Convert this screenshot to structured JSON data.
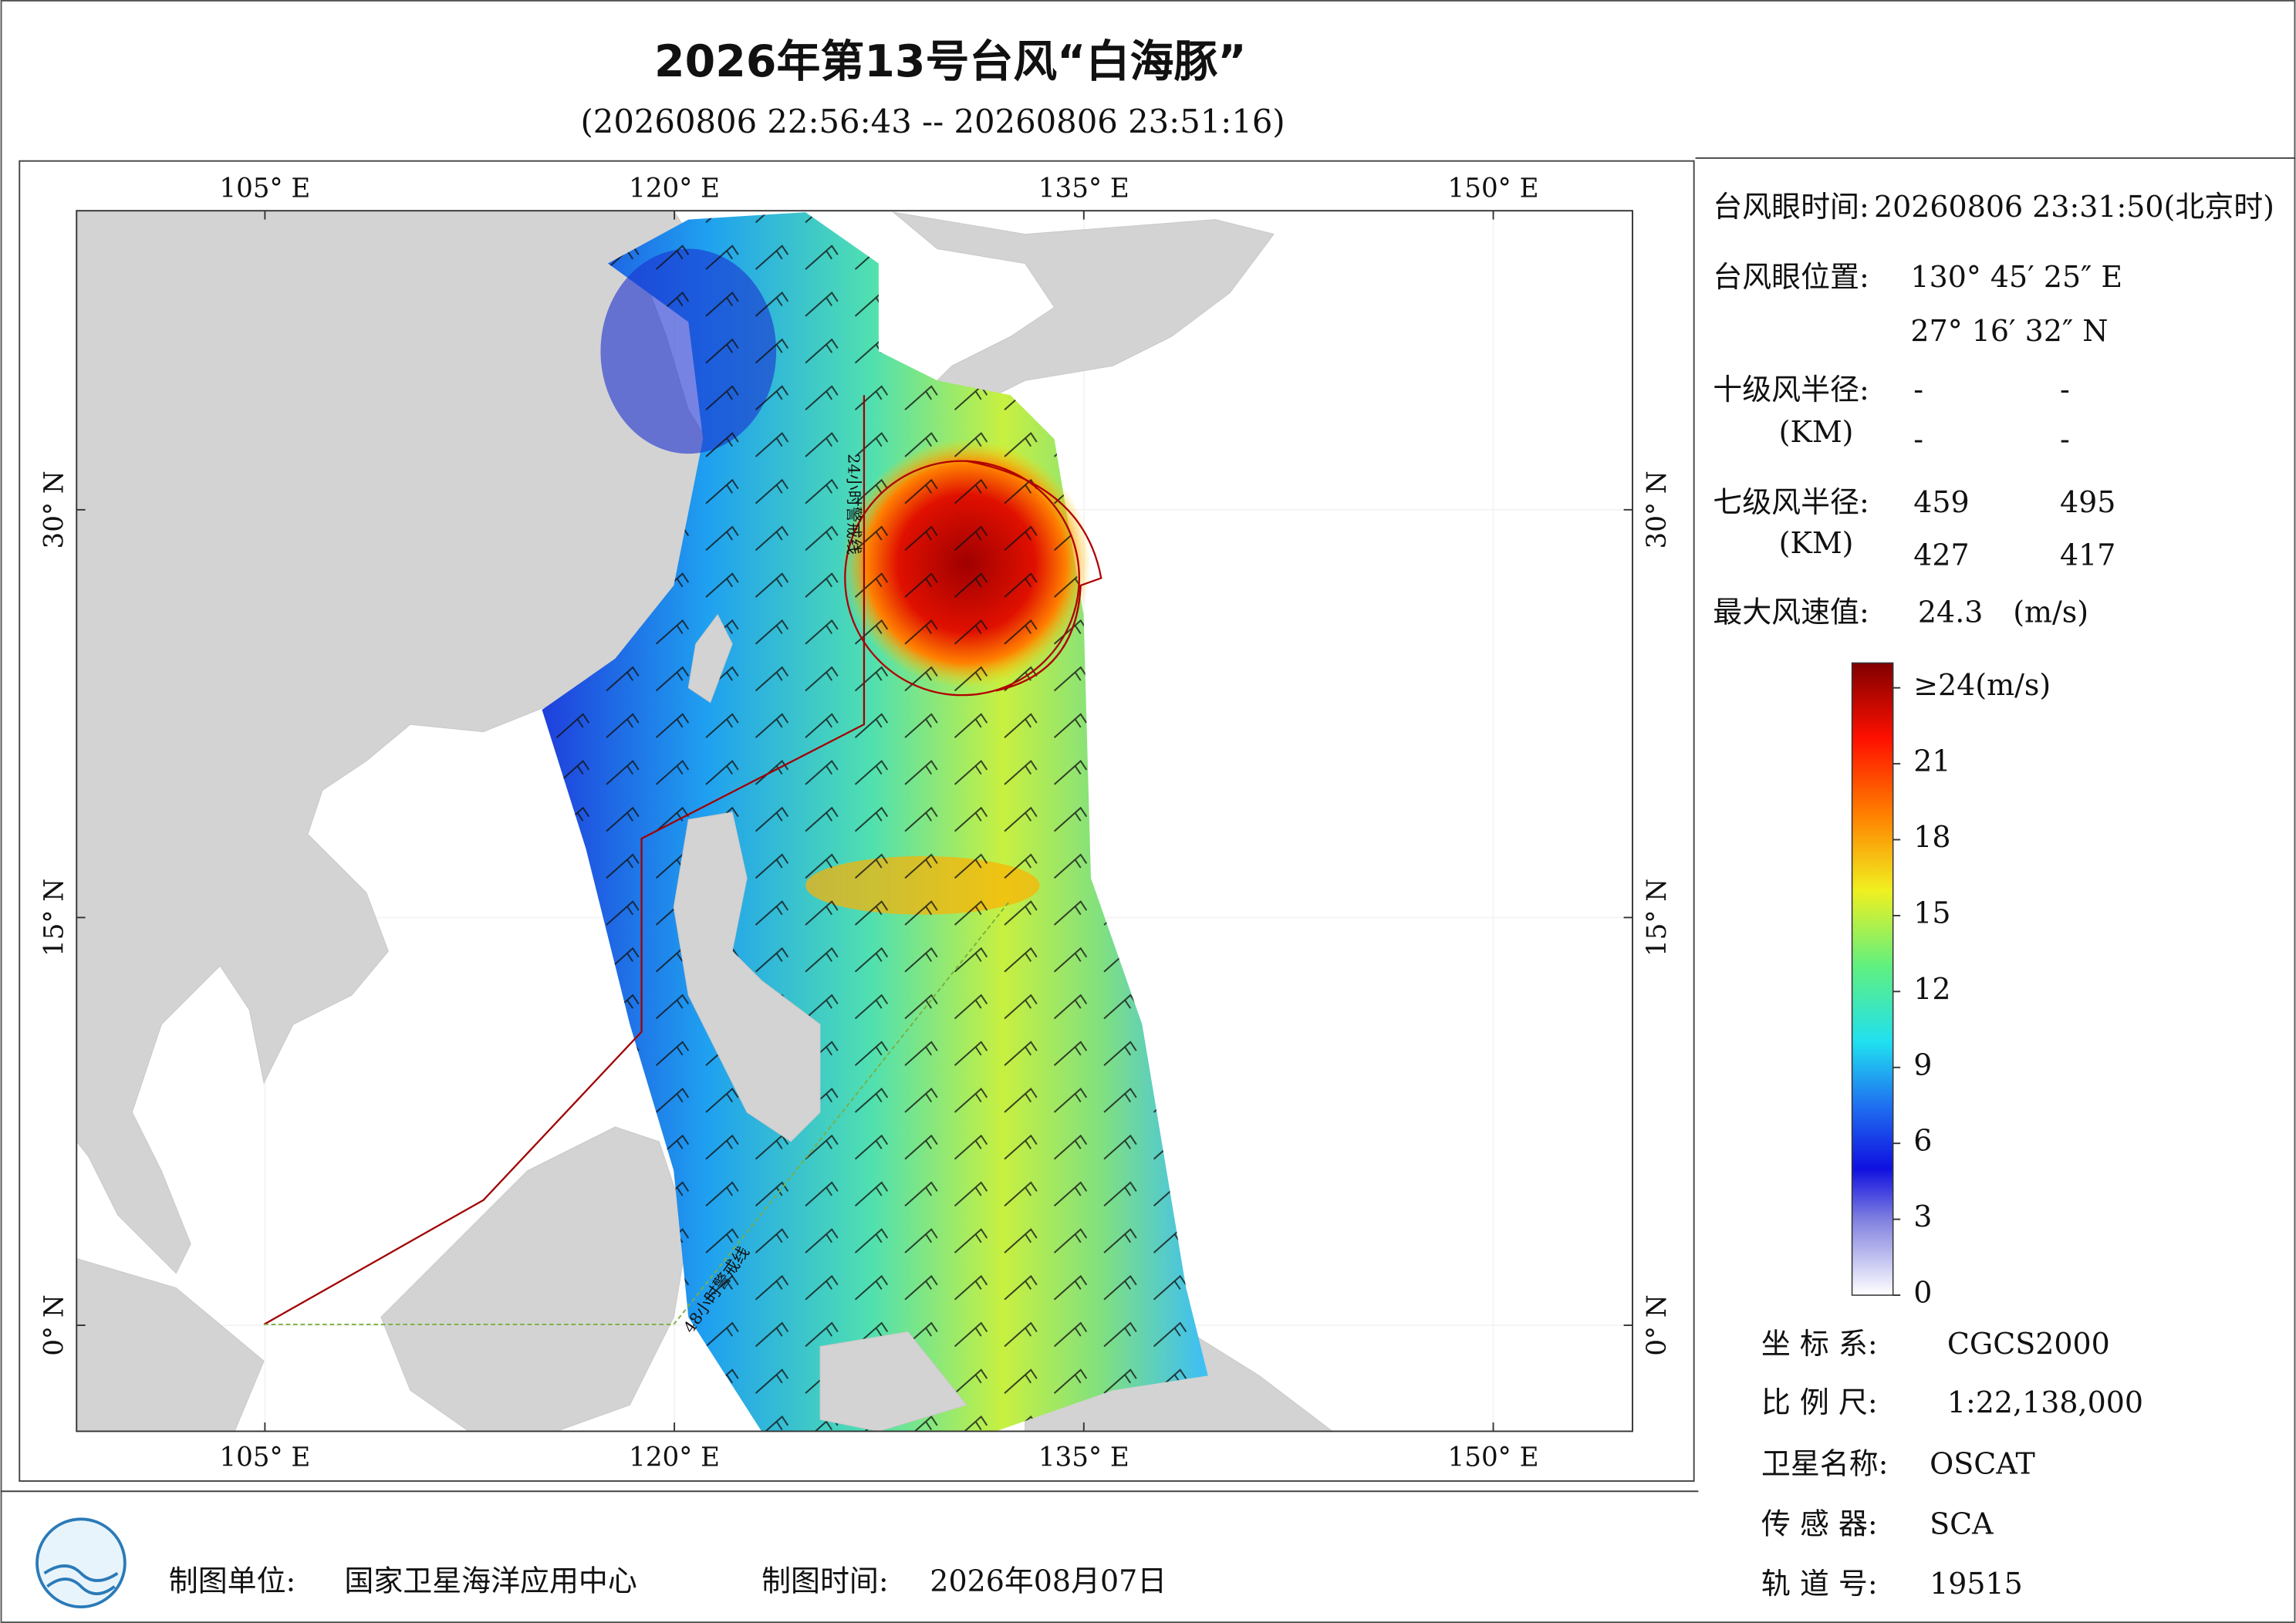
{
  "title": "2026年第13号台风“白海豚”",
  "subtitle": "(20260806 22:56:43 -- 20260806 23:51:16)",
  "map": {
    "lonlim": [
      98.1,
      155.1
    ],
    "latlim": [
      -3.9,
      41
    ],
    "lon_ticks": [
      {
        "value": 105,
        "label": "105° E"
      },
      {
        "value": 120,
        "label": "120° E"
      },
      {
        "value": 135,
        "label": "135° E"
      },
      {
        "value": 150,
        "label": "150° E"
      }
    ],
    "lat_ticks": [
      {
        "value": 0,
        "label": "0° N"
      },
      {
        "value": 15,
        "label": "15° N"
      },
      {
        "value": 30,
        "label": "30° N"
      }
    ],
    "line_labels": [
      "24小时警戒线",
      "48小时警戒线"
    ]
  },
  "info": {
    "eye_time_label": "台风眼时间:",
    "eye_time": "20260806 23:31:50(北京时)",
    "eye_pos_label": "台风眼位置:",
    "eye_lon": "130° 45′ 25″ E",
    "eye_lat": "27° 16′ 32″ N",
    "r10_label": "十级风半径:",
    "r10_unit": "(KM)",
    "r10": [
      "-",
      "-",
      "-",
      "-"
    ],
    "r7_label": "七级风半径:",
    "r7_unit": "(KM)",
    "r7": [
      459,
      495,
      427,
      417
    ],
    "vmax_label": "最大风速值:",
    "vmax": 24.3,
    "vmax_unit": "(m/s)"
  },
  "colorbar": {
    "ticks": [
      {
        "value": 24,
        "label": "≥24(m/s)"
      },
      21,
      18,
      15,
      12,
      9,
      6,
      3,
      0
    ]
  },
  "footer": {
    "crs_label": "坐 标 系:",
    "crs": "CGCS2000",
    "scale_label": "比 例 尺:",
    "scale": "1:22,138,000",
    "sat_label": "卫星名称:",
    "sat": "OSCAT",
    "sensor_label": "传 感 器:",
    "sensor": "SCA",
    "orbit_label": "轨 道 号:",
    "orbit": 19515,
    "unit_label": "制图单位:",
    "unit": "国家卫星海洋应用中心",
    "date_label": "制图时间:",
    "date": "2026年08月07日"
  }
}
